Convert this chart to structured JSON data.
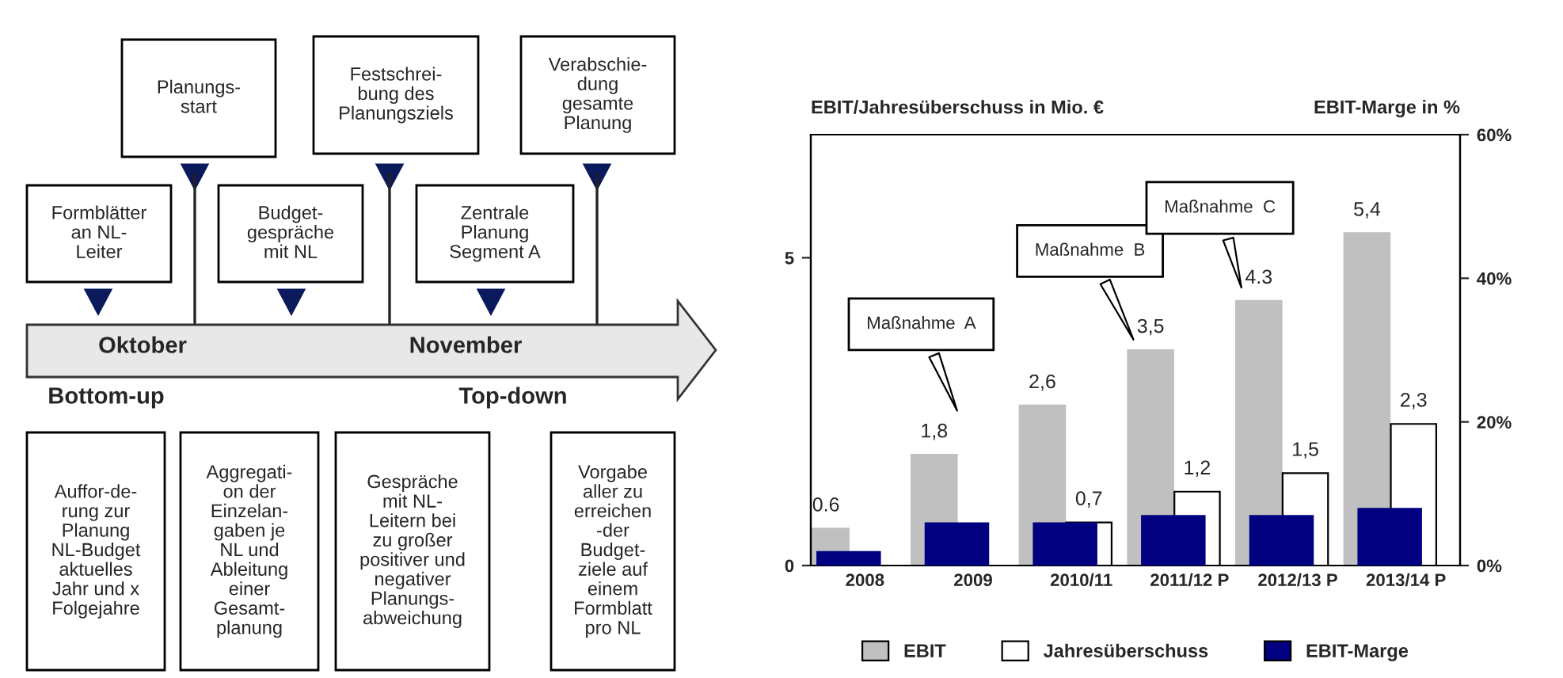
{
  "chart_data": [
    {
      "type": "other",
      "annotations": [
        "Formblätter\nan NL-\nLeiter",
        "Planungs-\nstart",
        "Budget-\ngespräche\nmit NL",
        "Festschrei-\nbung des\nPlanungsziels",
        "Zentrale\nPlanung\nSegment A",
        "Verabschie-\ndung\ngesamte\nPlanung",
        "Oktober",
        "November",
        "Bottom-up",
        "Top-down",
        "Auffor-de-\nrung zur\nPlanung\nNL-Budget\naktuelles\nJahr und x\nFolgejahre",
        "Aggregati-\non der\nEinzelan-\ngaben je\nNL und\nAbleitung\neiner\nGesamt-\nplanung",
        "Gespräche\nmit NL-\nLeitern bei\nzu großer\npositiver und\nnegativer\nPlanungs-\nabweichung",
        "Vorgabe\naller zu\nerreichen\n-der\nBudget-\nziele auf\neinem\nFormblatt\npro NL"
      ]
    },
    {
      "type": "bar",
      "ylabel": "EBIT/Jahresüberschuss in Mio. €",
      "y2label": "EBIT-Marge in %",
      "categories": [
        "2008",
        "2009",
        "2010/11",
        "2011/12 P",
        "2012/13 P",
        "2013/14 P"
      ],
      "series": [
        {
          "name": "EBIT",
          "color": "#c0c0c0",
          "values": [
            0.6,
            1.8,
            2.6,
            3.5,
            4.3,
            5.4
          ],
          "value_labels": [
            "0.6",
            "1,8",
            "2,6",
            "3,5",
            "4.3",
            "5,4"
          ]
        },
        {
          "name": "Jahresüberschuss",
          "color": "#ffffff",
          "values": [
            null,
            null,
            0.7,
            1.2,
            1.5,
            2.3
          ],
          "value_labels": [
            null,
            null,
            "0,7",
            "1,2",
            "1,5",
            "2,3"
          ]
        },
        {
          "name": "EBIT-Marge",
          "color": "#000080",
          "axis": "y2",
          "values": [
            1.9,
            5.9,
            5.9,
            6.9,
            6.9,
            7.9
          ]
        }
      ],
      "ylim": [
        0,
        7
      ],
      "yticks": [
        0,
        5
      ],
      "y2lim": [
        0,
        60
      ],
      "y2ticks": [
        {
          "value": 0,
          "label": "0%"
        },
        {
          "value": 20,
          "label": "20%"
        },
        {
          "value": 40,
          "label": "40%"
        },
        {
          "value": 60,
          "label": "60%"
        }
      ],
      "annotations": [
        "Maßnahme  A",
        "Maßnahme  B",
        "Maßnahme  C"
      ],
      "legend": "bottom",
      "grid": false
    }
  ]
}
